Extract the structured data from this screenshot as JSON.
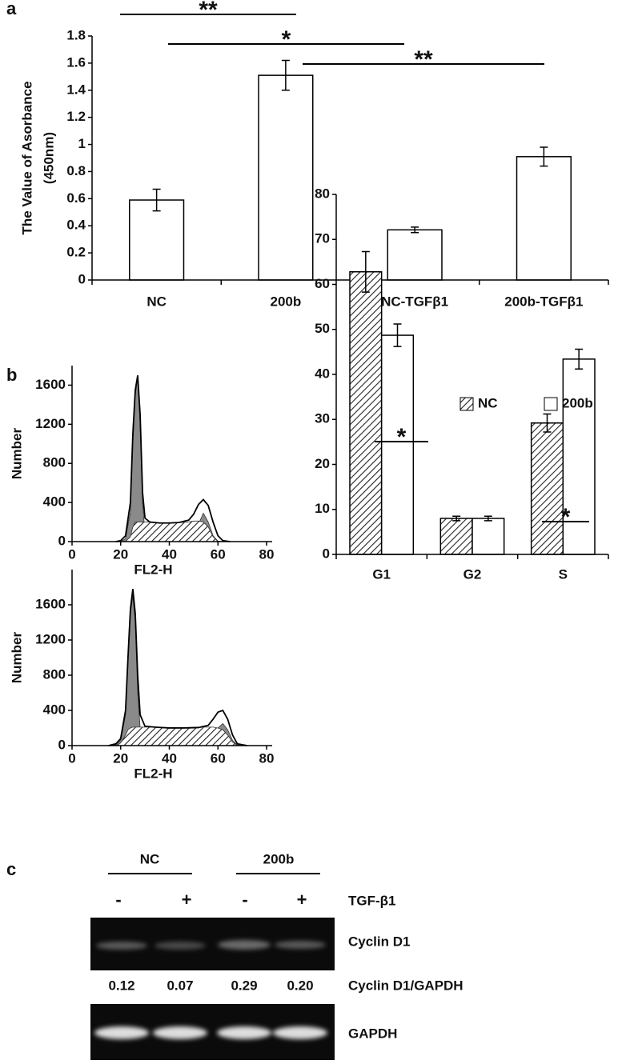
{
  "chart_data": [
    {
      "type": "bar",
      "panel_label": "a",
      "ylabel": [
        "The Value of Asorbance",
        "(450nm)"
      ],
      "categories": [
        "NC",
        "200b",
        "NC-TGFβ1",
        "200b-TGFβ1"
      ],
      "values": [
        0.59,
        1.51,
        0.37,
        0.91
      ],
      "errors": [
        0.08,
        0.11,
        0.02,
        0.07
      ],
      "color": "#ffffff",
      "ylim": [
        0,
        1.8
      ],
      "yticks": [
        0,
        0.2,
        0.4,
        0.6,
        0.8,
        1,
        1.2,
        1.4,
        1.6,
        1.8
      ],
      "annotations": [
        "**",
        "*",
        "**"
      ]
    },
    {
      "type": "area",
      "panel_label": "b",
      "xlabel": "FL2-H",
      "ylabel": "Number",
      "x": [
        18,
        20,
        22,
        24,
        25,
        26,
        27,
        28,
        29,
        30,
        32,
        36,
        40,
        44,
        48,
        50,
        52,
        54,
        56,
        58,
        60,
        62,
        65
      ],
      "series": [
        {
          "color": "#8a8a8a",
          "fill": "solid",
          "values": [
            0,
            0,
            30,
            300,
            1000,
            1500,
            1680,
            1200,
            400,
            80,
            0,
            0,
            0,
            0,
            0,
            30,
            180,
            290,
            200,
            60,
            5,
            0,
            0
          ]
        },
        {
          "color": "#555555",
          "fill": "hatch",
          "values": [
            0,
            0,
            0,
            50,
            150,
            200,
            200,
            200,
            200,
            200,
            200,
            190,
            190,
            195,
            200,
            210,
            210,
            200,
            150,
            50,
            0,
            0,
            0
          ]
        },
        {
          "color": "#000000",
          "fill": "none",
          "values": [
            0,
            10,
            60,
            400,
            1100,
            1550,
            1700,
            1300,
            500,
            240,
            200,
            190,
            190,
            195,
            220,
            280,
            380,
            430,
            370,
            200,
            60,
            10,
            0
          ]
        }
      ],
      "xlim": [
        0,
        80
      ],
      "xticks": [
        0,
        20,
        40,
        60,
        80
      ],
      "ylim": [
        0,
        1800
      ],
      "yticks": [
        0,
        400,
        800,
        1200,
        1600
      ]
    },
    {
      "type": "area",
      "xlabel": "FL2-H",
      "ylabel": "Number",
      "x": [
        15,
        18,
        20,
        22,
        23,
        24,
        25,
        26,
        27,
        28,
        30,
        34,
        40,
        46,
        52,
        56,
        58,
        60,
        62,
        64,
        66,
        68,
        72
      ],
      "series": [
        {
          "color": "#8a8a8a",
          "fill": "solid",
          "values": [
            0,
            10,
            60,
            350,
            950,
            1500,
            1700,
            1400,
            600,
            200,
            40,
            0,
            0,
            0,
            0,
            10,
            80,
            200,
            250,
            180,
            60,
            5,
            0
          ]
        },
        {
          "color": "#555555",
          "fill": "hatch",
          "values": [
            0,
            0,
            30,
            120,
            180,
            200,
            210,
            210,
            210,
            210,
            210,
            210,
            205,
            205,
            210,
            210,
            210,
            200,
            180,
            120,
            40,
            0,
            0
          ]
        },
        {
          "color": "#000000",
          "fill": "none",
          "values": [
            0,
            20,
            80,
            400,
            1000,
            1550,
            1780,
            1500,
            800,
            350,
            220,
            210,
            200,
            200,
            205,
            230,
            300,
            380,
            400,
            300,
            120,
            20,
            0
          ]
        }
      ],
      "xlim": [
        0,
        80
      ],
      "xticks": [
        0,
        20,
        40,
        60,
        80
      ],
      "ylim": [
        0,
        2000
      ],
      "yticks": [
        0,
        400,
        800,
        1200,
        1600
      ]
    },
    {
      "type": "bar",
      "categories": [
        "G1",
        "G2",
        "S"
      ],
      "series": [
        {
          "name": "NC",
          "color": "#555555",
          "pattern": "hatch",
          "values": [
            62.8,
            8,
            29.2
          ],
          "errors": [
            4.5,
            0.5,
            2
          ]
        },
        {
          "name": "200b",
          "color": "#ffffff",
          "values": [
            48.7,
            8,
            43.4
          ],
          "errors": [
            2.5,
            0.5,
            2.2
          ]
        }
      ],
      "ylim": [
        0,
        80
      ],
      "yticks": [
        0,
        10,
        20,
        30,
        40,
        50,
        60,
        70,
        80
      ],
      "legend": "top-right",
      "annotations": [
        "*",
        "*"
      ]
    }
  ],
  "panel_c": {
    "label": "c",
    "groups": [
      "NC",
      "200b"
    ],
    "signs": [
      "-",
      "+",
      "-",
      "+"
    ],
    "treatment": "TGF-β1",
    "rows": [
      "Cyclin D1",
      "GAPDH"
    ],
    "ratio_label": "Cyclin D1/GAPDH",
    "ratios": [
      "0.12",
      "0.07",
      "0.29",
      "0.20"
    ]
  }
}
